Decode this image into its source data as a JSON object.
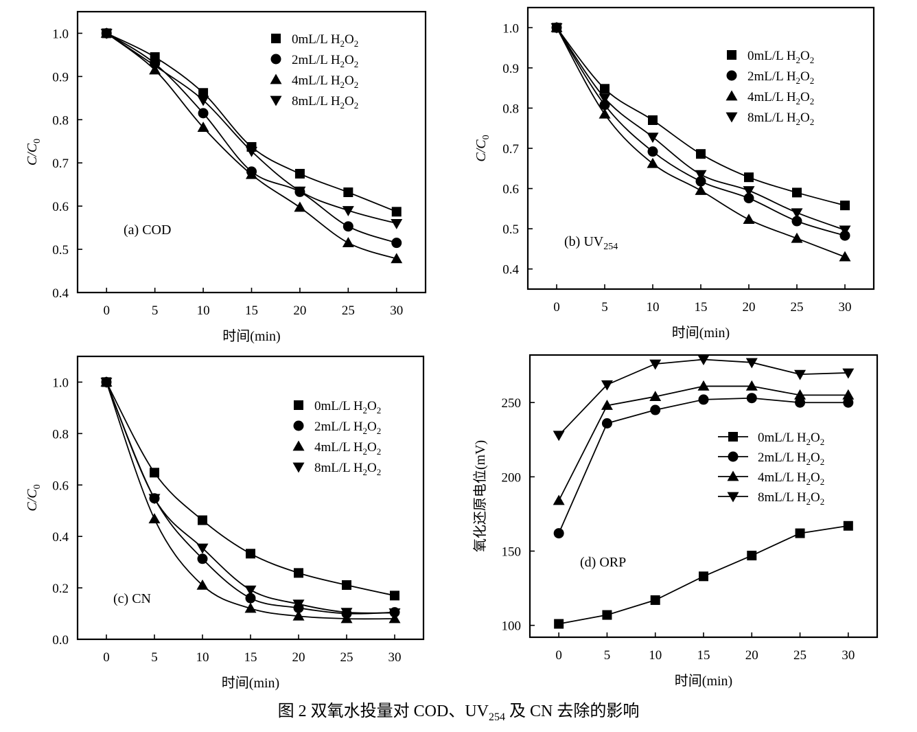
{
  "caption": {
    "prefix": "图 2    双氧水投量对 COD、UV",
    "sub": "254",
    "suffix": " 及 CN 去除的影响"
  },
  "colors": {
    "ink": "#000000",
    "background": "#ffffff"
  },
  "chart_data": [
    {
      "id": "a",
      "type": "line",
      "title": "(a) COD",
      "xlabel": "时间(min)",
      "ylabel": "C/C0",
      "xlim": [
        -3,
        33
      ],
      "ylim": [
        0.4,
        1.05
      ],
      "xticks": [
        "0",
        "5",
        "10",
        "15",
        "20",
        "25",
        "30"
      ],
      "yticks": [
        "0.4",
        "0.5",
        "0.6",
        "0.7",
        "0.8",
        "0.9",
        "1.0"
      ],
      "legend_position": "top-right",
      "line_style": "smooth-fit",
      "x": [
        0,
        5,
        10,
        15,
        20,
        25,
        30
      ],
      "series": [
        {
          "name": "0mL/L H2O2",
          "marker": "square",
          "values": [
            1.0,
            0.945,
            0.862,
            0.737,
            0.675,
            0.632,
            0.587
          ]
        },
        {
          "name": "2mL/L H2O2",
          "marker": "circle",
          "values": [
            1.0,
            0.93,
            0.815,
            0.68,
            0.633,
            0.553,
            0.515
          ]
        },
        {
          "name": "4mL/L H2O2",
          "marker": "triangle",
          "values": [
            1.0,
            0.915,
            0.782,
            0.673,
            0.597,
            0.515,
            0.478
          ]
        },
        {
          "name": "8mL/L H2O2",
          "marker": "triangle-down",
          "values": [
            1.0,
            0.925,
            0.845,
            0.727,
            0.635,
            0.59,
            0.56
          ]
        }
      ]
    },
    {
      "id": "b",
      "type": "line",
      "title": "(b) UV",
      "title_sub": "254",
      "xlabel": "时间(min)",
      "ylabel": "C/C0",
      "xlim": [
        -3,
        33
      ],
      "ylim": [
        0.35,
        1.05
      ],
      "xticks": [
        "0",
        "5",
        "10",
        "15",
        "20",
        "25",
        "30"
      ],
      "yticks": [
        "0.4",
        "0.5",
        "0.6",
        "0.7",
        "0.8",
        "0.9",
        "1.0"
      ],
      "legend_position": "top-right",
      "line_style": "smooth-fit",
      "x": [
        0,
        5,
        10,
        15,
        20,
        25,
        30
      ],
      "series": [
        {
          "name": "0mL/L H2O2",
          "marker": "square",
          "values": [
            1.0,
            0.848,
            0.77,
            0.686,
            0.628,
            0.59,
            0.558
          ]
        },
        {
          "name": "2mL/L H2O2",
          "marker": "circle",
          "values": [
            1.0,
            0.808,
            0.692,
            0.618,
            0.576,
            0.519,
            0.483
          ]
        },
        {
          "name": "4mL/L H2O2",
          "marker": "triangle",
          "values": [
            1.0,
            0.785,
            0.662,
            0.595,
            0.523,
            0.476,
            0.43
          ]
        },
        {
          "name": "8mL/L H2O2",
          "marker": "triangle-down",
          "values": [
            1.0,
            0.825,
            0.728,
            0.635,
            0.595,
            0.54,
            0.497
          ]
        }
      ]
    },
    {
      "id": "c",
      "type": "line",
      "title": "(c) CN",
      "xlabel": "时间(min)",
      "ylabel": "C/C0",
      "xlim": [
        -3,
        33
      ],
      "ylim": [
        0.0,
        1.1
      ],
      "xticks": [
        "0",
        "5",
        "10",
        "15",
        "20",
        "25",
        "30"
      ],
      "yticks": [
        "0.0",
        "0.2",
        "0.4",
        "0.6",
        "0.8",
        "1.0"
      ],
      "legend_position": "top-right",
      "line_style": "smooth-fit",
      "x": [
        0,
        5,
        10,
        15,
        20,
        25,
        30
      ],
      "series": [
        {
          "name": "0mL/L H2O2",
          "marker": "square",
          "values": [
            1.0,
            0.648,
            0.463,
            0.333,
            0.258,
            0.211,
            0.17
          ]
        },
        {
          "name": "2mL/L H2O2",
          "marker": "circle",
          "values": [
            1.0,
            0.548,
            0.313,
            0.16,
            0.122,
            0.1,
            0.105
          ]
        },
        {
          "name": "4mL/L H2O2",
          "marker": "triangle",
          "values": [
            1.0,
            0.468,
            0.21,
            0.12,
            0.09,
            0.08,
            0.08
          ]
        },
        {
          "name": "8mL/L H2O2",
          "marker": "triangle-down",
          "values": [
            1.0,
            0.548,
            0.355,
            0.192,
            0.137,
            0.105,
            0.103
          ]
        }
      ]
    },
    {
      "id": "d",
      "type": "line",
      "title": "(d) ORP",
      "xlabel": "时间(min)",
      "ylabel": "氧化还原电位(mV)",
      "xlim": [
        -3,
        33
      ],
      "ylim": [
        92,
        282
      ],
      "xticks": [
        "0",
        "5",
        "10",
        "15",
        "20",
        "25",
        "30"
      ],
      "yticks": [
        "100",
        "150",
        "200",
        "250"
      ],
      "legend_position": "center-right",
      "line_style": "straight",
      "x": [
        0,
        5,
        10,
        15,
        20,
        25,
        30
      ],
      "series": [
        {
          "name": "0mL/L H2O2",
          "marker": "square",
          "values": [
            101,
            107,
            117,
            133,
            147,
            162,
            167
          ]
        },
        {
          "name": "2mL/L H2O2",
          "marker": "circle",
          "values": [
            162,
            236,
            245,
            252,
            253,
            250,
            250
          ]
        },
        {
          "name": "4mL/L H2O2",
          "marker": "triangle",
          "values": [
            184,
            248,
            254,
            261,
            261,
            255,
            255
          ]
        },
        {
          "name": "8mL/L H2O2",
          "marker": "triangle-down",
          "values": [
            228,
            262,
            276,
            279,
            277,
            269,
            270
          ]
        }
      ]
    }
  ]
}
